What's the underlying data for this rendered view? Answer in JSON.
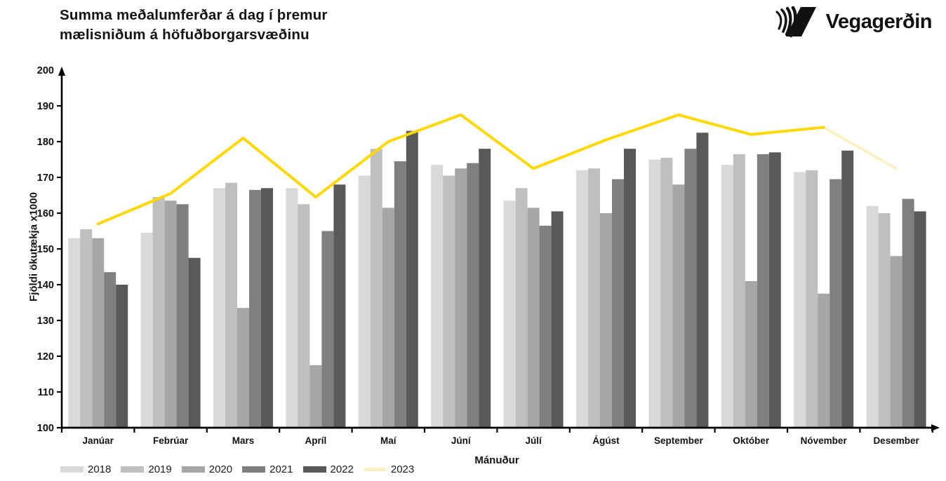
{
  "header": {
    "title_line1": "Summa meðalumferðar á dag í þremur",
    "title_line2": "mælisniðum á höfuðborgarsvæðinu",
    "logo_text": "Vegagerðin"
  },
  "chart_data": {
    "type": "bar",
    "title": "Summa meðalumferðar á dag í þremur mælisniðum á höfuðborgarsvæðinu",
    "xlabel": "Mánuður",
    "ylabel": "Fjöldi ökutækja x1000",
    "ylim": [
      100,
      200
    ],
    "ytick_step": 10,
    "grid": false,
    "legend_position": "bottom-left",
    "categories": [
      "Janúar",
      "Febrúar",
      "Mars",
      "Apríl",
      "Maí",
      "Júní",
      "Júlí",
      "Ágúst",
      "September",
      "Október",
      "Nóvember",
      "Desember"
    ],
    "series": [
      {
        "name": "2018",
        "type": "bar",
        "color": "#d9d9d9",
        "values": [
          153,
          154.5,
          167,
          167,
          170.5,
          173.5,
          163.5,
          172,
          175,
          173.5,
          171.5,
          162
        ]
      },
      {
        "name": "2019",
        "type": "bar",
        "color": "#bfbfbf",
        "values": [
          155.5,
          164.5,
          168.5,
          162.5,
          178,
          170.5,
          167,
          172.5,
          175.5,
          176.5,
          172,
          160
        ]
      },
      {
        "name": "2020",
        "type": "bar",
        "color": "#a6a6a6",
        "values": [
          153,
          163.5,
          133.5,
          117.5,
          161.5,
          172.5,
          161.5,
          160,
          168,
          141,
          137.5,
          148
        ]
      },
      {
        "name": "2021",
        "type": "bar",
        "color": "#7f7f7f",
        "values": [
          143.5,
          162.5,
          166.5,
          155,
          174.5,
          174,
          156.5,
          169.5,
          178,
          176.5,
          169.5,
          164
        ]
      },
      {
        "name": "2022",
        "type": "bar",
        "color": "#595959",
        "values": [
          140,
          147.5,
          167,
          168,
          183,
          178,
          160.5,
          178,
          182.5,
          177,
          177.5,
          160.5
        ]
      },
      {
        "name": "2023",
        "type": "line",
        "color": "#ffd800",
        "faded_color": "#fcf1c4",
        "faded_from_index": 10,
        "values": [
          157,
          165.5,
          181,
          164.5,
          180,
          187.5,
          172.5,
          180.5,
          187.5,
          182,
          184,
          172.5
        ]
      }
    ]
  }
}
